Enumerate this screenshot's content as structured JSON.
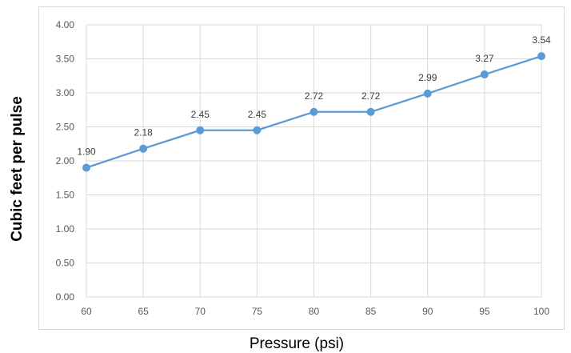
{
  "chart_data": {
    "type": "line",
    "title": "",
    "xlabel": "Pressure (psi)",
    "ylabel": "Cubic feet per pulse",
    "x": [
      60,
      65,
      70,
      75,
      80,
      85,
      90,
      95,
      100
    ],
    "x_tick_labels": [
      "60",
      "65",
      "70",
      "75",
      "80",
      "85",
      "90",
      "95",
      "100"
    ],
    "y_tick_labels": [
      "0.00",
      "0.50",
      "1.00",
      "1.50",
      "2.00",
      "2.50",
      "3.00",
      "3.50",
      "4.00"
    ],
    "ylim": [
      0,
      4
    ],
    "y_tick_step": 0.5,
    "grid": true,
    "legend": "none",
    "series": [
      {
        "values": [
          1.9,
          2.18,
          2.45,
          2.45,
          2.72,
          2.72,
          2.99,
          3.27,
          3.54
        ],
        "data_labels": [
          "1.90",
          "2.18",
          "2.45",
          "2.45",
          "2.72",
          "2.72",
          "2.99",
          "3.27",
          "3.54"
        ],
        "color": "#5b9bd5"
      }
    ]
  }
}
